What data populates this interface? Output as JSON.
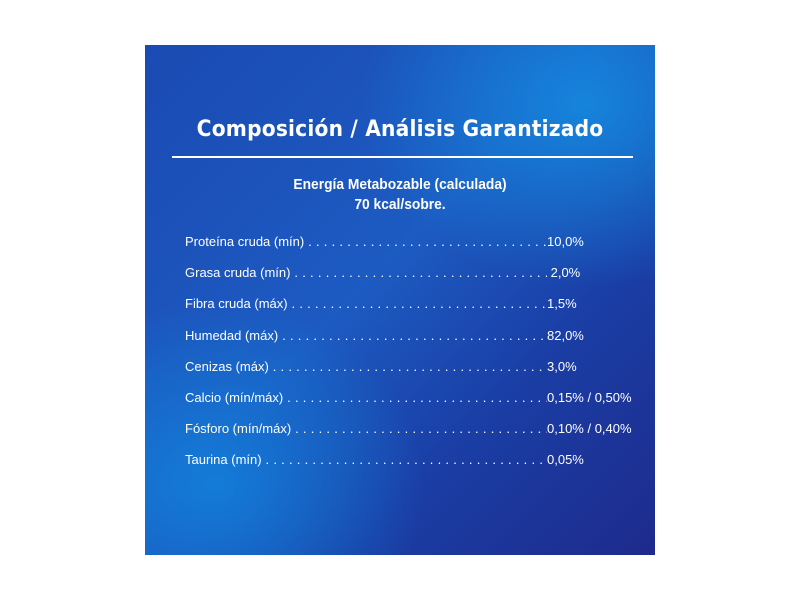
{
  "title": "Composición / Análisis Garantizado",
  "energy": {
    "line1": "Energía Metabozable (calculada)",
    "line2": "70 kcal/sobre."
  },
  "rows": [
    {
      "label": "Proteína cruda (mín)",
      "value": "10,0%"
    },
    {
      "label": "Grasa cruda (mín)",
      "value": " 2,0%"
    },
    {
      "label": "Fibra cruda (máx)",
      "value": "1,5%"
    },
    {
      "label": "Humedad (máx)",
      "value": "82,0%"
    },
    {
      "label": "Cenizas (máx)",
      "value": "3,0%"
    },
    {
      "label": "Calcio (mín/máx)",
      "value": "0,15% / 0,50%"
    },
    {
      "label": "Fósforo (mín/máx)",
      "value": "0,10% / 0,40%"
    },
    {
      "label": "Taurina (mín)",
      "value": "0,05%"
    }
  ],
  "colors": {
    "panel_dark": "#1e2a8c",
    "panel_mid": "#1c5bc2",
    "panel_light": "#148ce1",
    "text": "#ffffff"
  }
}
